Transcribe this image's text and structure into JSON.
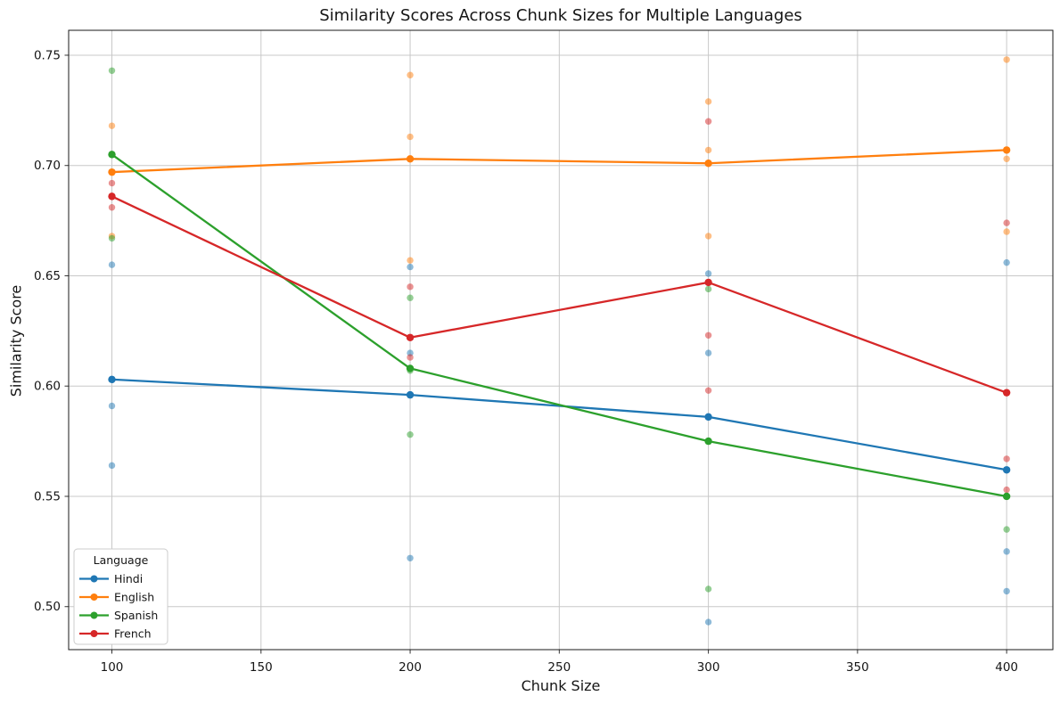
{
  "chart_data": {
    "type": "line",
    "title": "Similarity Scores Across Chunk Sizes for Multiple Languages",
    "xlabel": "Chunk Size",
    "ylabel": "Similarity Score",
    "x_ticks": [
      100,
      150,
      200,
      250,
      300,
      350,
      400
    ],
    "y_ticks": [
      0.5,
      0.55,
      0.6,
      0.65,
      0.7,
      0.75
    ],
    "y_tick_labels": [
      "0.50",
      "0.55",
      "0.60",
      "0.65",
      "0.70",
      "0.75"
    ],
    "xlim": [
      85.5,
      415.5
    ],
    "ylim": [
      0.4805,
      0.7613
    ],
    "grid": true,
    "grid_color": "#c8c8c8",
    "spine_color": "#1a1a1a",
    "scatter_alpha": 0.5,
    "legend": {
      "title": "Language",
      "position": "lower-left"
    },
    "x": [
      100,
      200,
      300,
      400
    ],
    "series": [
      {
        "name": "Hindi",
        "color": "#1f77b4",
        "mean_values": [
          0.603,
          0.596,
          0.586,
          0.562
        ],
        "scatter": [
          [
            100,
            0.655
          ],
          [
            100,
            0.591
          ],
          [
            100,
            0.564
          ],
          [
            200,
            0.654
          ],
          [
            200,
            0.615
          ],
          [
            200,
            0.522
          ],
          [
            300,
            0.651
          ],
          [
            300,
            0.615
          ],
          [
            300,
            0.493
          ],
          [
            400,
            0.656
          ],
          [
            400,
            0.525
          ],
          [
            400,
            0.507
          ]
        ]
      },
      {
        "name": "English",
        "color": "#ff7f0e",
        "mean_values": [
          0.697,
          0.703,
          0.701,
          0.707
        ],
        "scatter": [
          [
            100,
            0.718
          ],
          [
            100,
            0.668
          ],
          [
            200,
            0.741
          ],
          [
            200,
            0.713
          ],
          [
            200,
            0.657
          ],
          [
            300,
            0.729
          ],
          [
            300,
            0.707
          ],
          [
            300,
            0.668
          ],
          [
            400,
            0.748
          ],
          [
            400,
            0.703
          ],
          [
            400,
            0.67
          ]
        ]
      },
      {
        "name": "Spanish",
        "color": "#2ca02c",
        "mean_values": [
          0.705,
          0.608,
          0.575,
          0.55
        ],
        "scatter": [
          [
            100,
            0.743
          ],
          [
            100,
            0.705
          ],
          [
            100,
            0.667
          ],
          [
            200,
            0.64
          ],
          [
            200,
            0.607
          ],
          [
            200,
            0.578
          ],
          [
            300,
            0.644
          ],
          [
            300,
            0.575
          ],
          [
            300,
            0.508
          ],
          [
            400,
            0.55
          ],
          [
            400,
            0.535
          ]
        ]
      },
      {
        "name": "French",
        "color": "#d62728",
        "mean_values": [
          0.686,
          0.622,
          0.647,
          0.597
        ],
        "scatter": [
          [
            100,
            0.692
          ],
          [
            100,
            0.681
          ],
          [
            200,
            0.645
          ],
          [
            200,
            0.613
          ],
          [
            300,
            0.72
          ],
          [
            300,
            0.623
          ],
          [
            300,
            0.598
          ],
          [
            400,
            0.674
          ],
          [
            400,
            0.567
          ],
          [
            400,
            0.553
          ]
        ]
      }
    ]
  }
}
